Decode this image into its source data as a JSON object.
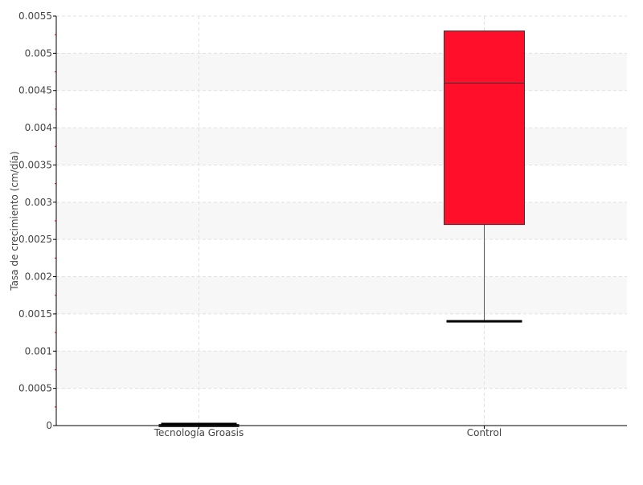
{
  "chart_data": {
    "type": "box",
    "ylabel": "Tasa de crecimiento (cm/día)",
    "xlabel": "",
    "ylim": [
      0,
      0.0055
    ],
    "yticks": [
      "0",
      "0.0005",
      "0.001",
      "0.0015",
      "0.002",
      "0.0025",
      "0.003",
      "0.0035",
      "0.004",
      "0.0045",
      "0.005",
      "0.0055"
    ],
    "grid": true,
    "categories": [
      "Tecnología Groasis",
      "Control"
    ],
    "boxes": [
      {
        "category": "Tecnología Groasis",
        "min": 0,
        "q1": 0,
        "median": 0,
        "q3": 0,
        "max": 0
      },
      {
        "category": "Control",
        "min": 0.0014,
        "q1": 0.0027,
        "median": 0.0046,
        "q3": 0.0053,
        "max": 0.0053
      }
    ],
    "colors": {
      "box": "#ff0f2a",
      "band": "#f7f7f7",
      "minor_tick": "#ff0000"
    }
  }
}
